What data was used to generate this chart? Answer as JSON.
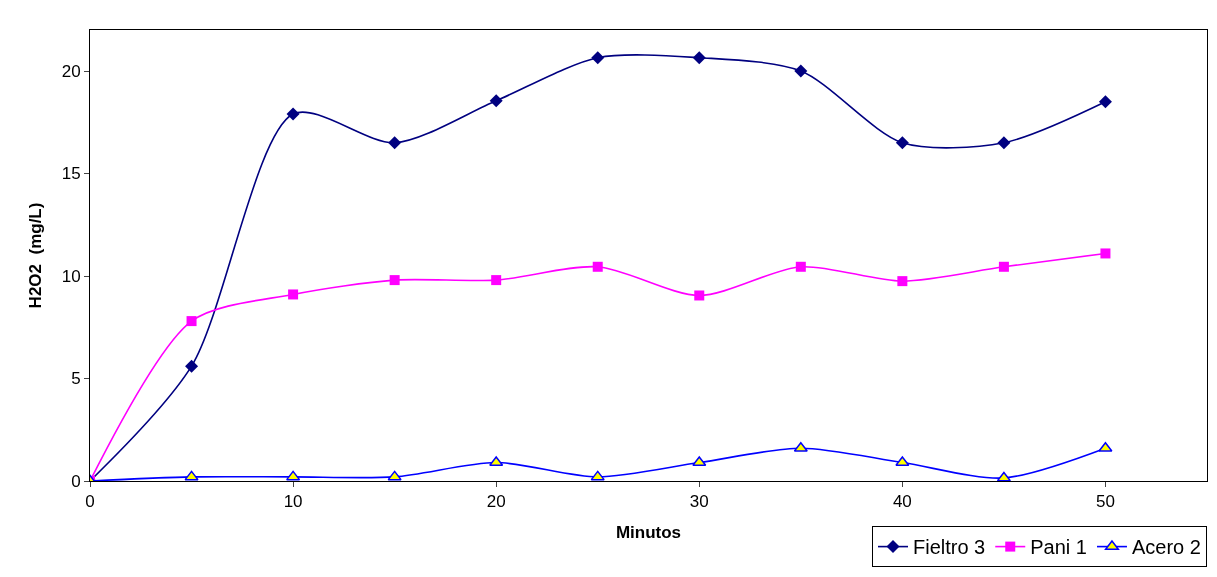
{
  "chart_data": {
    "type": "line",
    "xlabel": "Minutos",
    "ylabel": "H2O2  (mg/L)",
    "x": [
      0,
      5,
      10,
      15,
      20,
      25,
      30,
      35,
      40,
      45,
      50
    ],
    "series": [
      {
        "name": "Fieltro 3",
        "color": "#000080",
        "marker": "diamond",
        "values": [
          0,
          5.6,
          17.9,
          16.5,
          18.55,
          20.65,
          20.65,
          20.0,
          16.5,
          16.5,
          18.5
        ]
      },
      {
        "name": "Pani 1",
        "color": "#ff00ff",
        "marker": "square",
        "values": [
          0,
          7.8,
          9.1,
          9.8,
          9.8,
          10.45,
          9.05,
          10.45,
          9.75,
          10.45,
          11.1
        ]
      },
      {
        "name": "Acero 2",
        "color": "#0000ff",
        "marker": "triangle",
        "values": [
          0,
          0.2,
          0.2,
          0.2,
          0.9,
          0.2,
          0.9,
          1.6,
          0.9,
          0.15,
          1.6
        ]
      }
    ],
    "xlim": [
      0,
      55
    ],
    "xticks": [
      0,
      10,
      20,
      30,
      40,
      50
    ],
    "ylim": [
      0,
      22
    ],
    "yticks": [
      0,
      5,
      10,
      15,
      20
    ],
    "legend": "bottom right",
    "line_style": "solid"
  }
}
